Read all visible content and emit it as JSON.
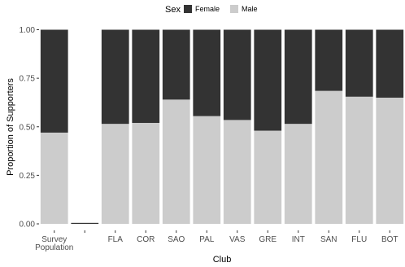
{
  "chart_data": {
    "type": "bar",
    "stacked": true,
    "categories": [
      [
        "Survey",
        "Population"
      ],
      [
        ""
      ],
      [
        "FLA"
      ],
      [
        "COR"
      ],
      [
        "SAO"
      ],
      [
        "PAL"
      ],
      [
        "VAS"
      ],
      [
        "GRE"
      ],
      [
        "INT"
      ],
      [
        "SAN"
      ],
      [
        "FLU"
      ],
      [
        "BOT"
      ]
    ],
    "series": [
      {
        "name": "Male",
        "color": "#cccccc",
        "values": [
          0.47,
          0.0,
          0.515,
          0.52,
          0.64,
          0.555,
          0.535,
          0.48,
          0.515,
          0.685,
          0.655,
          0.65
        ]
      },
      {
        "name": "Female",
        "color": "#333333",
        "values": [
          0.53,
          0.005,
          0.485,
          0.48,
          0.36,
          0.445,
          0.465,
          0.52,
          0.485,
          0.315,
          0.345,
          0.35
        ]
      }
    ],
    "xlabel": "Club",
    "ylabel": "Proportion of Supporters",
    "ylim": [
      0,
      1
    ],
    "yticks": [
      "0.00",
      "0.25",
      "0.50",
      "0.75",
      "1.00"
    ],
    "ytick_values": [
      0,
      0.25,
      0.5,
      0.75,
      1.0
    ],
    "grid": false,
    "legend": {
      "title": "Sex",
      "position": "top",
      "entries": [
        {
          "label": "Female",
          "color": "#333333"
        },
        {
          "label": "Male",
          "color": "#cccccc"
        }
      ]
    }
  }
}
